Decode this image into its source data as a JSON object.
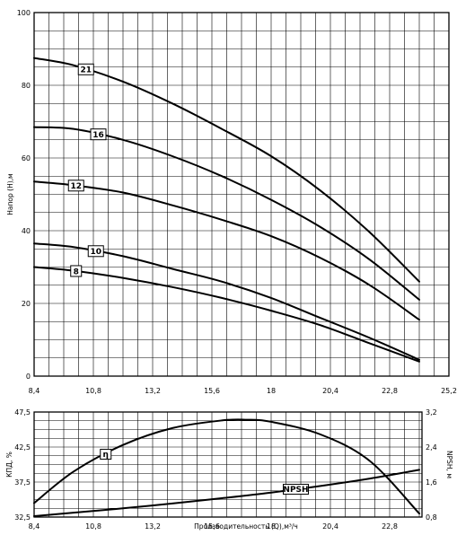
{
  "chart_data": [
    {
      "type": "line",
      "title": "",
      "xlabel": "",
      "ylabel": "Напор (Н),м",
      "xlim": [
        8.4,
        25.2
      ],
      "ylim": [
        0,
        100
      ],
      "x_ticks": [
        "8,4",
        "10,8",
        "13,2",
        "15,6",
        "18",
        "20,4",
        "22,8",
        "25,2"
      ],
      "y_ticks": [
        "0",
        "20",
        "40",
        "60",
        "80",
        "100"
      ],
      "grid": true,
      "series": [
        {
          "name": "21",
          "x": [
            8.4,
            10.0,
            12.0,
            14.0,
            16.0,
            18.0,
            20.0,
            22.0,
            24.0
          ],
          "y": [
            87.5,
            85.5,
            81.0,
            75.0,
            68.0,
            60.5,
            51.0,
            39.5,
            26.0
          ]
        },
        {
          "name": "16",
          "x": [
            8.4,
            10.0,
            12.0,
            14.0,
            16.0,
            18.0,
            20.0,
            22.0,
            24.0
          ],
          "y": [
            68.5,
            68.0,
            65.0,
            60.5,
            55.0,
            48.5,
            41.0,
            32.0,
            21.0
          ]
        },
        {
          "name": "12",
          "x": [
            8.4,
            10.0,
            12.0,
            14.0,
            16.0,
            18.0,
            20.0,
            22.0,
            24.0
          ],
          "y": [
            53.5,
            52.5,
            50.5,
            47.0,
            43.0,
            38.5,
            32.5,
            25.0,
            15.5
          ]
        },
        {
          "name": "10",
          "x": [
            8.4,
            10.0,
            12.0,
            14.0,
            16.0,
            18.0,
            20.0,
            22.0,
            24.0
          ],
          "y": [
            36.5,
            35.5,
            33.0,
            29.5,
            26.0,
            21.5,
            16.0,
            10.5,
            4.5
          ]
        },
        {
          "name": "8",
          "x": [
            8.4,
            10.0,
            12.0,
            14.0,
            16.0,
            18.0,
            20.0,
            22.0,
            24.0
          ],
          "y": [
            30.0,
            29.0,
            27.0,
            24.5,
            21.5,
            18.0,
            14.0,
            9.0,
            4.0
          ]
        }
      ]
    },
    {
      "type": "line",
      "title": "",
      "xlabel": "Производительность (Q),м³/ч",
      "ylabel": "КПД, %",
      "ylabel_right": "NPSH, м",
      "xlim": [
        8.4,
        25.2
      ],
      "ylim": [
        32.5,
        47.5
      ],
      "ylim_right": [
        0.8,
        3.2
      ],
      "x_ticks": [
        "8,4",
        "10,8",
        "13,2",
        "15,6",
        "18",
        "20,4",
        "22,8"
      ],
      "y_ticks": [
        "32,5",
        "37,5",
        "42,5",
        "47,5"
      ],
      "y_ticks_right": [
        "0,8",
        "1,6",
        "2,4",
        "3,2"
      ],
      "grid": true,
      "series": [
        {
          "name": "η",
          "axis": "left",
          "x": [
            8.4,
            10.0,
            12.0,
            14.0,
            16.0,
            17.0,
            18.0,
            20.0,
            22.0,
            24.0
          ],
          "y": [
            34.5,
            39.0,
            42.8,
            45.2,
            46.3,
            46.4,
            46.1,
            44.3,
            40.5,
            33.0
          ]
        },
        {
          "name": "NPSH",
          "axis": "right",
          "x": [
            8.4,
            10.0,
            12.0,
            14.0,
            16.0,
            18.0,
            20.0,
            22.0,
            24.0
          ],
          "y": [
            0.82,
            0.9,
            1.0,
            1.11,
            1.23,
            1.36,
            1.51,
            1.68,
            1.88
          ]
        }
      ]
    }
  ]
}
